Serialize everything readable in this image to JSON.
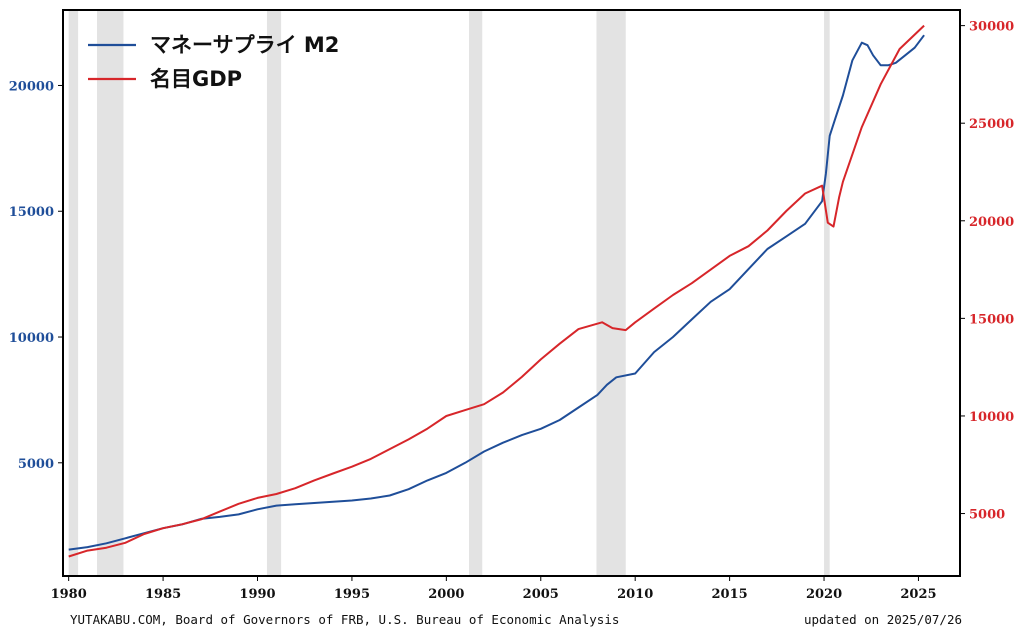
{
  "chart_data": {
    "type": "line",
    "title": "",
    "x_ticks": [
      "1980",
      "1985",
      "1990",
      "1995",
      "2000",
      "2005",
      "2010",
      "2015",
      "2020",
      "2025"
    ],
    "xlim": [
      1979.7,
      2027.2
    ],
    "y_left": {
      "ticks": [
        "5000",
        "10000",
        "15000",
        "20000"
      ],
      "ylim": [
        500,
        23000
      ],
      "color": "#1f4e99"
    },
    "y_right": {
      "ticks": [
        "5000",
        "10000",
        "15000",
        "20000",
        "25000",
        "30000"
      ],
      "ylim": [
        1800,
        30800
      ],
      "color": "#d7262a"
    },
    "recessions": [
      [
        1980.0,
        1980.5
      ],
      [
        1981.5,
        1982.9
      ],
      [
        1990.5,
        1991.25
      ],
      [
        2001.2,
        2001.9
      ],
      [
        2007.95,
        2009.5
      ],
      [
        2020.0,
        2020.3
      ]
    ],
    "legend_position": "top-left",
    "series": [
      {
        "name": "マネーサプライ M2",
        "axis": "left",
        "color": "#1f4e99",
        "points": [
          [
            1980.0,
            1550
          ],
          [
            1981,
            1650
          ],
          [
            1982,
            1800
          ],
          [
            1983,
            2000
          ],
          [
            1984,
            2200
          ],
          [
            1985,
            2400
          ],
          [
            1986,
            2550
          ],
          [
            1987,
            2770
          ],
          [
            1988,
            2850
          ],
          [
            1989,
            2950
          ],
          [
            1990,
            3150
          ],
          [
            1991,
            3300
          ],
          [
            1992,
            3350
          ],
          [
            1993,
            3400
          ],
          [
            1994,
            3450
          ],
          [
            1995,
            3500
          ],
          [
            1996,
            3580
          ],
          [
            1997,
            3700
          ],
          [
            1998,
            3950
          ],
          [
            1999,
            4300
          ],
          [
            2000,
            4600
          ],
          [
            2001,
            5000
          ],
          [
            2002,
            5450
          ],
          [
            2003,
            5800
          ],
          [
            2004,
            6100
          ],
          [
            2005,
            6350
          ],
          [
            2006,
            6700
          ],
          [
            2007,
            7200
          ],
          [
            2008,
            7700
          ],
          [
            2008.5,
            8100
          ],
          [
            2009,
            8400
          ],
          [
            2010,
            8550
          ],
          [
            2011,
            9400
          ],
          [
            2012,
            10000
          ],
          [
            2013,
            10700
          ],
          [
            2014,
            11400
          ],
          [
            2015,
            11900
          ],
          [
            2016,
            12700
          ],
          [
            2017,
            13500
          ],
          [
            2018,
            14000
          ],
          [
            2019,
            14500
          ],
          [
            2019.9,
            15400
          ],
          [
            2020.1,
            16500
          ],
          [
            2020.3,
            18000
          ],
          [
            2020.6,
            18700
          ],
          [
            2021,
            19600
          ],
          [
            2021.5,
            21000
          ],
          [
            2022.0,
            21700
          ],
          [
            2022.3,
            21600
          ],
          [
            2022.6,
            21200
          ],
          [
            2023.0,
            20800
          ],
          [
            2023.4,
            20800
          ],
          [
            2023.8,
            20900
          ],
          [
            2024.3,
            21200
          ],
          [
            2024.8,
            21500
          ],
          [
            2025.3,
            22000
          ]
        ]
      },
      {
        "name": "名目GDP",
        "axis": "right",
        "color": "#d7262a",
        "points": [
          [
            1980.0,
            2800
          ],
          [
            1981,
            3100
          ],
          [
            1982,
            3250
          ],
          [
            1983,
            3500
          ],
          [
            1984,
            3950
          ],
          [
            1985,
            4250
          ],
          [
            1986,
            4450
          ],
          [
            1987,
            4700
          ],
          [
            1988,
            5100
          ],
          [
            1989,
            5500
          ],
          [
            1990,
            5800
          ],
          [
            1991,
            6000
          ],
          [
            1992,
            6300
          ],
          [
            1993,
            6700
          ],
          [
            1994,
            7050
          ],
          [
            1995,
            7400
          ],
          [
            1996,
            7800
          ],
          [
            1997,
            8300
          ],
          [
            1998,
            8800
          ],
          [
            1999,
            9350
          ],
          [
            2000,
            10000
          ],
          [
            2001,
            10300
          ],
          [
            2002,
            10600
          ],
          [
            2003,
            11200
          ],
          [
            2004,
            12000
          ],
          [
            2005,
            12900
          ],
          [
            2006,
            13700
          ],
          [
            2007,
            14450
          ],
          [
            2008.25,
            14800
          ],
          [
            2008.8,
            14500
          ],
          [
            2009.5,
            14400
          ],
          [
            2010,
            14800
          ],
          [
            2011,
            15500
          ],
          [
            2012,
            16200
          ],
          [
            2013,
            16800
          ],
          [
            2014,
            17500
          ],
          [
            2015,
            18200
          ],
          [
            2016,
            18700
          ],
          [
            2017,
            19500
          ],
          [
            2018,
            20500
          ],
          [
            2019,
            21400
          ],
          [
            2019.9,
            21800
          ],
          [
            2020.2,
            19900
          ],
          [
            2020.5,
            19700
          ],
          [
            2020.8,
            21200
          ],
          [
            2021,
            22000
          ],
          [
            2022,
            24800
          ],
          [
            2023,
            27000
          ],
          [
            2024,
            28800
          ],
          [
            2025.3,
            30000
          ]
        ]
      }
    ]
  },
  "footer": {
    "source": "YUTAKABU.COM, Board of Governors of FRB, U.S. Bureau of Economic Analysis",
    "updated": "updated on 2025/07/26"
  }
}
